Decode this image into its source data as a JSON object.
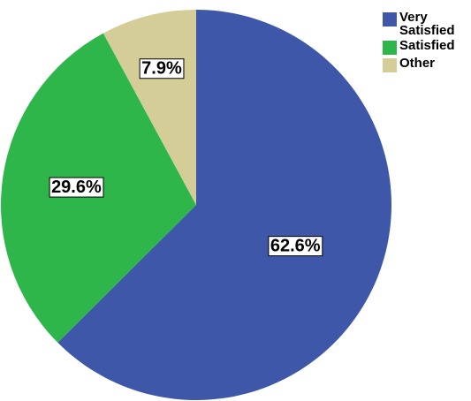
{
  "chart_data": {
    "type": "pie",
    "title": "",
    "legend_position": "top-right",
    "start_angle_deg": 0,
    "direction": "clockwise",
    "slices": [
      {
        "label": "Very Satisfied",
        "legend_lines": [
          "Very",
          "Satisfied"
        ],
        "value": 62.6,
        "value_label": "62.6%",
        "color": "#3f57a8"
      },
      {
        "label": "Satisfied",
        "legend_lines": [
          "Satisfied"
        ],
        "value": 29.6,
        "value_label": "29.6%",
        "color": "#2fb64a"
      },
      {
        "label": "Other",
        "legend_lines": [
          "Other"
        ],
        "value": 7.9,
        "value_label": "7.9%",
        "color": "#d4cd98"
      }
    ]
  }
}
